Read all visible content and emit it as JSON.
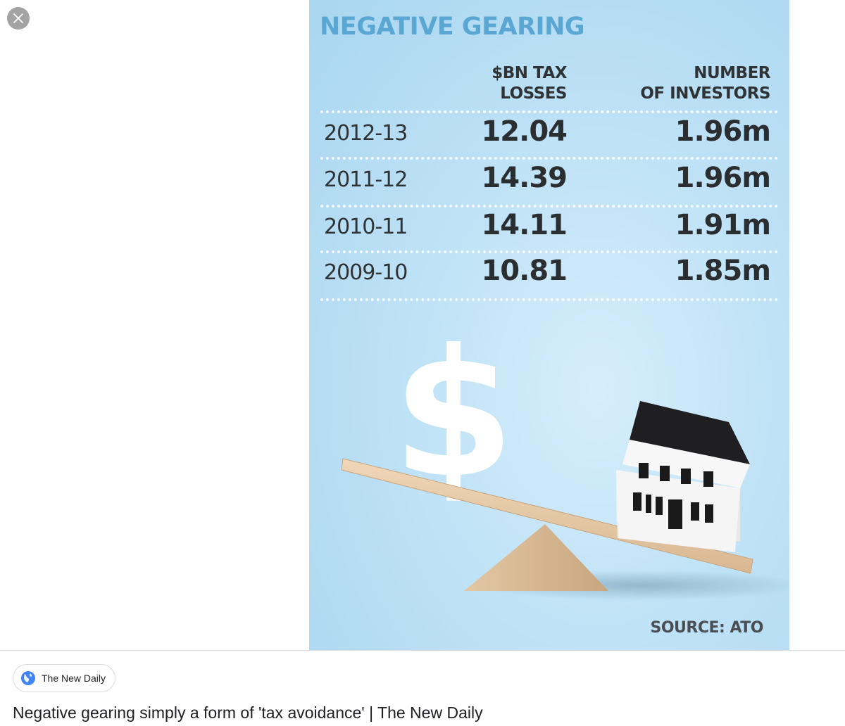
{
  "viewer": {
    "infographic": {
      "title": "NEGATIVE GEARING",
      "columns": {
        "losses": [
          "$BN TAX",
          "LOSSES"
        ],
        "investors": [
          "NUMBER",
          "OF INVESTORS"
        ]
      },
      "rows": [
        {
          "year": "2012-13",
          "losses": "12.04",
          "investors": "1.96m"
        },
        {
          "year": "2011-12",
          "losses": "14.39",
          "investors": "1.96m"
        },
        {
          "year": "2010-11",
          "losses": "14.11",
          "investors": "1.91m"
        },
        {
          "year": "2009-10",
          "losses": "10.81",
          "investors": "1.85m"
        }
      ],
      "source": "SOURCE: ATO",
      "illustration": {
        "dollar_symbol": "$",
        "colors": {
          "background": "#bfe2f6",
          "plank": "#e7c9a6",
          "fulcrum": "#d4b48f",
          "house_roof": "#1f1f22",
          "house_wall": "#f4f4f4"
        }
      }
    }
  },
  "result": {
    "site_name": "The New Daily",
    "caption": "Negative gearing simply a form of 'tax avoidance' | The New Daily",
    "icon": "globe-icon"
  },
  "controls": {
    "close_icon": "close-icon"
  }
}
